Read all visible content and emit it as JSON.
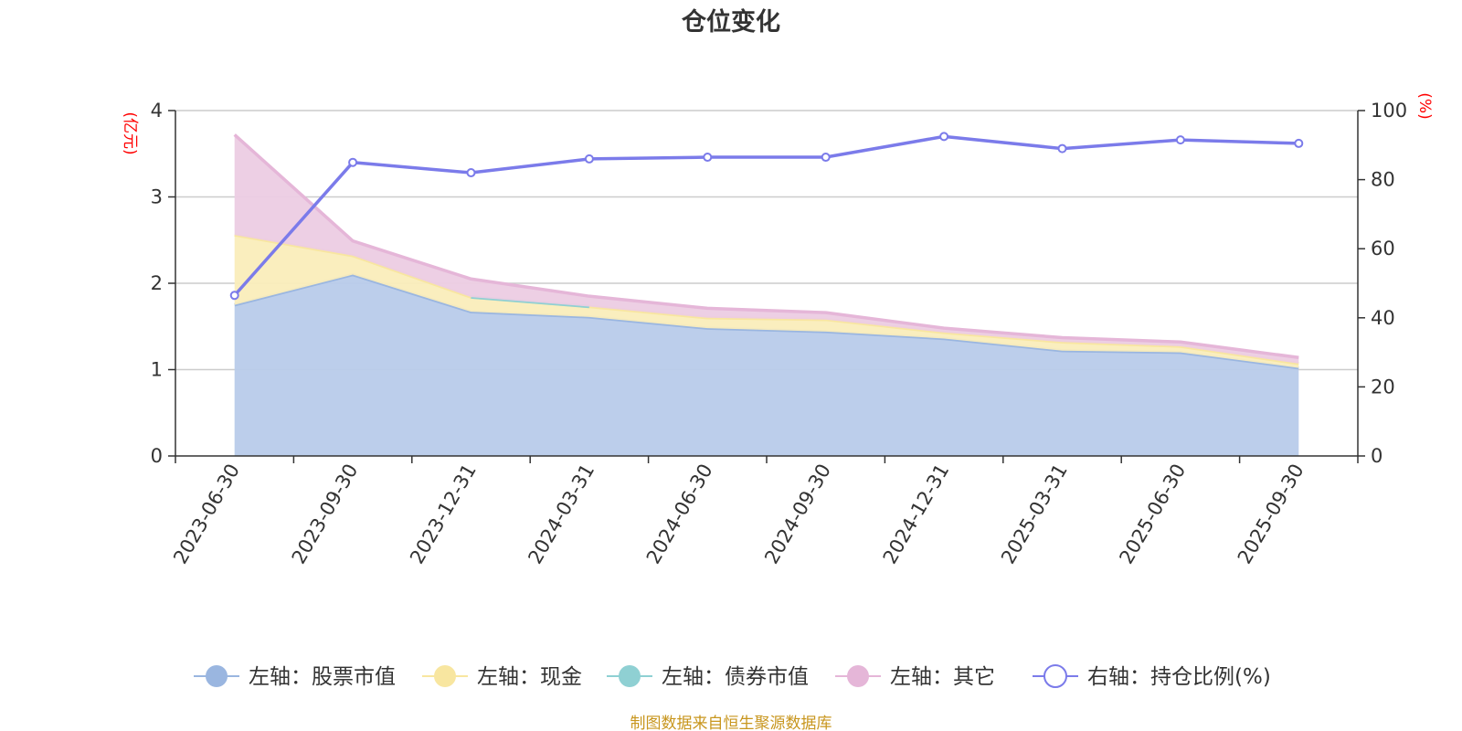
{
  "chart_data": {
    "type": "area",
    "title": "仓位变化",
    "categories": [
      "2023-06-30",
      "2023-09-30",
      "2023-12-31",
      "2024-03-31",
      "2024-06-30",
      "2024-09-30",
      "2024-12-31",
      "2025-03-31",
      "2025-06-30",
      "2025-09-30"
    ],
    "left_axis": {
      "unit": "(亿元)",
      "ylim": [
        0,
        4
      ],
      "ticks": [
        "0",
        "1",
        "2",
        "3",
        "4"
      ]
    },
    "right_axis": {
      "unit": "(%)",
      "ylim": [
        0,
        100
      ],
      "ticks": [
        "0",
        "20",
        "40",
        "60",
        "80",
        "100"
      ]
    },
    "series": [
      {
        "name": "左轴：股票市值",
        "axis": "left",
        "kind": "stack-area",
        "color": "#9ab6e0",
        "fill": "#b8cbea",
        "values": [
          1.75,
          2.1,
          1.67,
          1.61,
          1.48,
          1.44,
          1.36,
          1.22,
          1.2,
          1.02
        ]
      },
      {
        "name": "左轴：现金",
        "axis": "left",
        "kind": "stack-area",
        "color": "#f8e6a0",
        "fill": "#faedba",
        "values": [
          0.81,
          0.22,
          0.17,
          0.12,
          0.12,
          0.14,
          0.07,
          0.1,
          0.07,
          0.05
        ]
      },
      {
        "name": "左轴：债券市值",
        "axis": "left",
        "kind": "stack-line",
        "color": "#8fd0d3",
        "fill": "#8fd0d3",
        "values": [
          null,
          null,
          0.0,
          0.0,
          null,
          null,
          null,
          null,
          null,
          null
        ]
      },
      {
        "name": "左轴：其它",
        "axis": "left",
        "kind": "stack-area",
        "color": "#e5b6d8",
        "fill": "#eccce3",
        "values": [
          1.16,
          0.17,
          0.21,
          0.12,
          0.11,
          0.08,
          0.05,
          0.05,
          0.05,
          0.07
        ]
      },
      {
        "name": "右轴：持仓比例(%)",
        "axis": "right",
        "kind": "line",
        "color": "#7b7bea",
        "fill": "#ffffff",
        "values": [
          46.5,
          85.0,
          82.0,
          86.0,
          86.5,
          86.5,
          92.5,
          89.0,
          91.5,
          90.5
        ]
      }
    ],
    "grid": true,
    "legend": "bottom-center",
    "source_note": "制图数据来自恒生聚源数据库"
  }
}
